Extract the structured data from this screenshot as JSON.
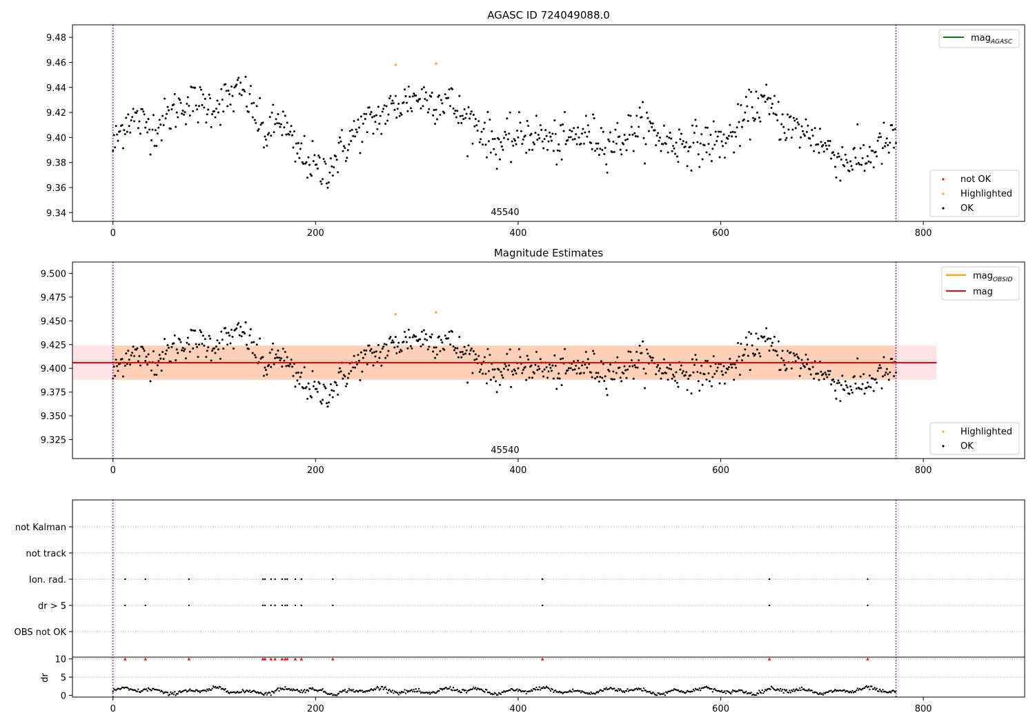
{
  "chart_data": [
    {
      "type": "scatter",
      "title": "AGASC ID 724049088.0",
      "xlim": [
        -40,
        900
      ],
      "ylim": [
        9.333,
        9.49
      ],
      "xticks": [
        0,
        200,
        400,
        600,
        800
      ],
      "yticks": [
        9.34,
        9.36,
        9.38,
        9.4,
        9.42,
        9.44,
        9.46,
        9.48
      ],
      "obsid_label": "45540",
      "obs_boundaries": [
        0,
        773
      ],
      "legend_lines": [
        {
          "name": "mag",
          "subscript": "AGASC",
          "color": "#008000"
        }
      ],
      "legend_points": [
        {
          "name": "not OK",
          "color": "#ff0000"
        },
        {
          "name": "Highlighted",
          "color": "#ffa500"
        },
        {
          "name": "OK",
          "color": "#000000"
        }
      ],
      "highlighted_points": [
        [
          279,
          9.458
        ],
        [
          319,
          9.459
        ]
      ],
      "ok_series_trend": {
        "x": [
          0,
          15,
          40,
          70,
          100,
          130,
          150,
          165,
          180,
          205,
          240,
          270,
          300,
          330,
          345,
          380,
          430,
          480,
          520,
          560,
          580,
          610,
          640,
          655,
          700,
          745,
          760,
          773
        ],
        "y": [
          9.392,
          9.412,
          9.412,
          9.423,
          9.43,
          9.432,
          9.405,
          9.418,
          9.385,
          9.375,
          9.4,
          9.425,
          9.428,
          9.435,
          9.413,
          9.398,
          9.4,
          9.398,
          9.405,
          9.398,
          9.39,
          9.404,
          9.425,
          9.42,
          9.392,
          9.38,
          9.392,
          9.402
        ]
      },
      "ok_point_count": 773
    },
    {
      "type": "scatter",
      "title": "Magnitude Estimates",
      "xlim": [
        -40,
        900
      ],
      "ylim": [
        9.305,
        9.512
      ],
      "xticks": [
        0,
        200,
        400,
        600,
        800
      ],
      "yticks": [
        9.325,
        9.35,
        9.375,
        9.4,
        9.425,
        9.45,
        9.475,
        9.5
      ],
      "obsid_label": "45540",
      "obs_boundaries": [
        0,
        773
      ],
      "mag_line": 9.406,
      "mag_band": [
        9.388,
        9.424
      ],
      "band_x_extent": [
        -40,
        813
      ],
      "legend_lines": [
        {
          "name": "mag",
          "subscript": "OBSID",
          "color": "#ffa500"
        },
        {
          "name": "mag",
          "subscript": "",
          "color": "#ff0000"
        }
      ],
      "legend_points": [
        {
          "name": "Highlighted",
          "color": "#ffa500"
        },
        {
          "name": "OK",
          "color": "#000000"
        }
      ],
      "highlighted_points": [
        [
          279,
          9.457
        ],
        [
          319,
          9.459
        ]
      ]
    },
    {
      "type": "scatter",
      "title": "",
      "xlim": [
        -40,
        900
      ],
      "flag_rows": [
        "not Kalman",
        "not track",
        "Ion. rad.",
        "dr > 5",
        "OBS not OK"
      ],
      "flag_points": [
        12,
        32,
        75,
        148,
        150,
        156,
        160,
        167,
        170,
        172,
        180,
        186,
        217,
        424,
        648,
        745
      ],
      "flag_rows_marked": [
        "Ion. rad.",
        "dr > 5"
      ],
      "dr_ylabel": "dr",
      "dr_ylim": [
        -0.5,
        10.5
      ],
      "dr_yticks": [
        0,
        5,
        10
      ],
      "dr_high_value": 10,
      "dr_high_points": [
        12,
        32,
        75,
        148,
        150,
        156,
        160,
        167,
        170,
        172,
        180,
        186,
        217,
        424,
        648,
        745
      ],
      "xticks": [
        0,
        200,
        400,
        600,
        800
      ],
      "obs_boundaries": [
        0,
        773
      ]
    }
  ]
}
